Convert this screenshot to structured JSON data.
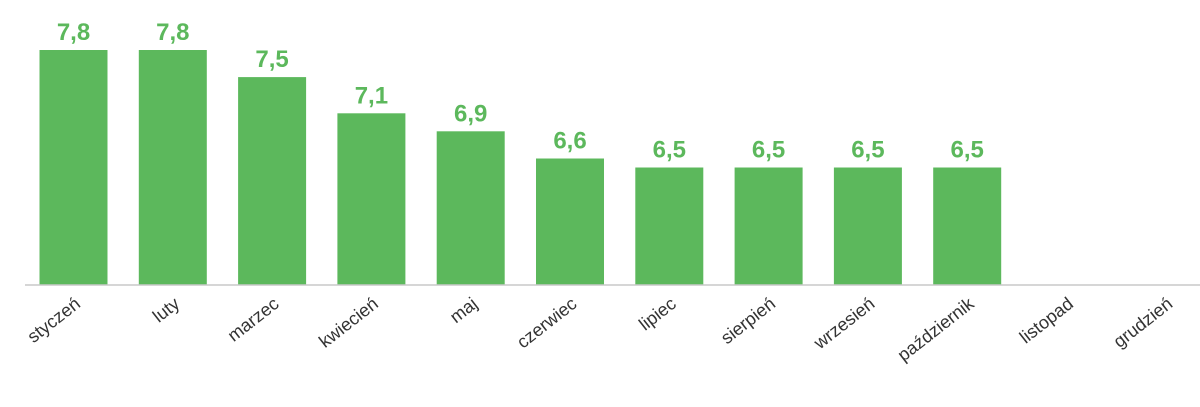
{
  "chart_data": {
    "type": "bar",
    "categories": [
      "styczeń",
      "luty",
      "marzec",
      "kwiecień",
      "maj",
      "czerwiec",
      "lipiec",
      "sierpień",
      "wrzesień",
      "październik",
      "listopad",
      "grudzień"
    ],
    "values": [
      7.8,
      7.8,
      7.5,
      7.1,
      6.9,
      6.6,
      6.5,
      6.5,
      6.5,
      6.5,
      null,
      null
    ],
    "data_labels": [
      "7,8",
      "7,8",
      "7,5",
      "7,1",
      "6,9",
      "6,6",
      "6,5",
      "6,5",
      "6,5",
      "6,5",
      "",
      ""
    ],
    "ylim": [
      5.2,
      7.8
    ],
    "grid": false,
    "bar_color": "#5cb85c",
    "label_color": "#5cb85c"
  }
}
